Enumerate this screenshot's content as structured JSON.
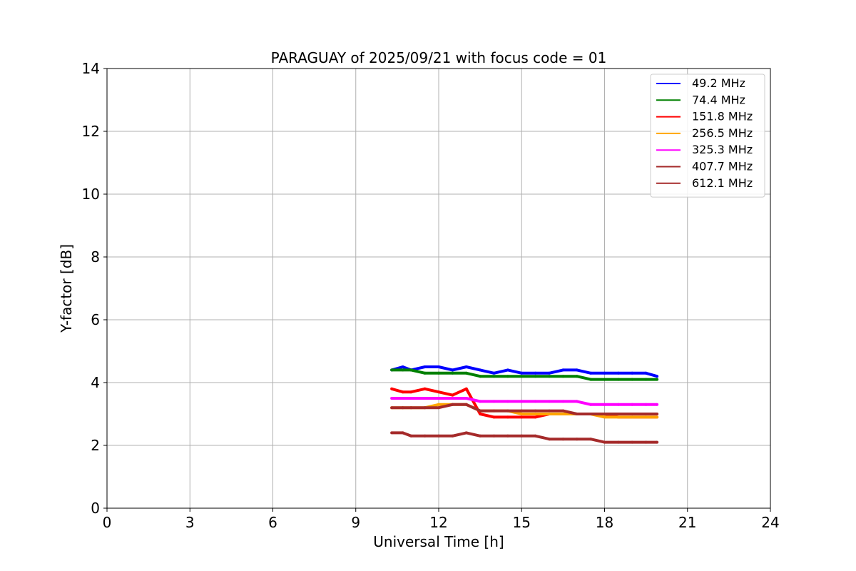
{
  "chart_data": {
    "type": "line",
    "title": "PARAGUAY of 2025/09/21 with focus code = 01",
    "xlabel": "Universal Time [h]",
    "ylabel": "Y-factor [dB]",
    "xlim": [
      0,
      24
    ],
    "ylim": [
      0,
      14
    ],
    "xticks": [
      0,
      3,
      6,
      9,
      12,
      15,
      18,
      21,
      24
    ],
    "yticks": [
      0,
      2,
      4,
      6,
      8,
      10,
      12,
      14
    ],
    "grid": true,
    "legend_position": "top-right",
    "series": [
      {
        "name": " 49.2 MHz",
        "color": "#0000ff",
        "x": [
          10.3,
          10.7,
          11.0,
          11.5,
          12.0,
          12.5,
          13.0,
          13.5,
          14.0,
          14.5,
          15.0,
          15.5,
          16.0,
          16.5,
          17.0,
          17.5,
          18.0,
          18.5,
          19.0,
          19.5,
          19.9
        ],
        "y": [
          4.4,
          4.5,
          4.4,
          4.5,
          4.5,
          4.4,
          4.5,
          4.4,
          4.3,
          4.4,
          4.3,
          4.3,
          4.3,
          4.4,
          4.4,
          4.3,
          4.3,
          4.3,
          4.3,
          4.3,
          4.2
        ]
      },
      {
        "name": " 74.4 MHz",
        "color": "#008000",
        "x": [
          10.3,
          10.7,
          11.0,
          11.5,
          12.0,
          12.5,
          13.0,
          13.5,
          14.0,
          14.5,
          15.0,
          15.5,
          16.0,
          16.5,
          17.0,
          17.5,
          18.0,
          18.5,
          19.0,
          19.5,
          19.9
        ],
        "y": [
          4.4,
          4.4,
          4.4,
          4.3,
          4.3,
          4.3,
          4.3,
          4.2,
          4.2,
          4.2,
          4.2,
          4.2,
          4.2,
          4.2,
          4.2,
          4.1,
          4.1,
          4.1,
          4.1,
          4.1,
          4.1
        ]
      },
      {
        "name": "151.8 MHz",
        "color": "#ff0000",
        "x": [
          10.3,
          10.7,
          11.0,
          11.5,
          12.0,
          12.5,
          13.0,
          13.5,
          14.0,
          14.5,
          15.0,
          15.5,
          16.0,
          16.5,
          17.0,
          17.5,
          18.0,
          18.5,
          19.0,
          19.5,
          19.9
        ],
        "y": [
          3.8,
          3.7,
          3.7,
          3.8,
          3.7,
          3.6,
          3.8,
          3.0,
          2.9,
          2.9,
          2.9,
          2.9,
          3.0,
          3.0,
          3.0,
          3.0,
          3.0,
          2.9,
          2.9,
          2.9,
          2.9
        ]
      },
      {
        "name": "256.5 MHz",
        "color": "#ffa500",
        "x": [
          10.3,
          10.7,
          11.0,
          11.5,
          12.0,
          12.5,
          13.0,
          13.5,
          14.0,
          14.5,
          15.0,
          15.5,
          16.0,
          16.5,
          17.0,
          17.5,
          18.0,
          18.5,
          19.0,
          19.5,
          19.9
        ],
        "y": [
          3.2,
          3.2,
          3.2,
          3.2,
          3.3,
          3.3,
          3.3,
          3.1,
          3.1,
          3.1,
          3.0,
          3.0,
          3.0,
          3.0,
          3.0,
          3.0,
          2.9,
          2.9,
          2.9,
          2.9,
          2.9
        ]
      },
      {
        "name": "325.3 MHz",
        "color": "#ff00ff",
        "x": [
          10.3,
          10.7,
          11.0,
          11.5,
          12.0,
          12.5,
          13.0,
          13.5,
          14.0,
          14.5,
          15.0,
          15.5,
          16.0,
          16.5,
          17.0,
          17.5,
          18.0,
          18.5,
          19.0,
          19.5,
          19.9
        ],
        "y": [
          3.5,
          3.5,
          3.5,
          3.5,
          3.5,
          3.5,
          3.5,
          3.4,
          3.4,
          3.4,
          3.4,
          3.4,
          3.4,
          3.4,
          3.4,
          3.3,
          3.3,
          3.3,
          3.3,
          3.3,
          3.3
        ]
      },
      {
        "name": "407.7 MHz",
        "color": "#a52a2a",
        "x": [
          10.3,
          10.7,
          11.0,
          11.5,
          12.0,
          12.5,
          13.0,
          13.5,
          14.0,
          14.5,
          15.0,
          15.5,
          16.0,
          16.5,
          17.0,
          17.5,
          18.0,
          18.5,
          19.0,
          19.5,
          19.9
        ],
        "y": [
          3.2,
          3.2,
          3.2,
          3.2,
          3.2,
          3.3,
          3.3,
          3.1,
          3.1,
          3.1,
          3.1,
          3.1,
          3.1,
          3.1,
          3.0,
          3.0,
          3.0,
          3.0,
          3.0,
          3.0,
          3.0
        ]
      },
      {
        "name": "612.1 MHz",
        "color": "#a52a2a",
        "x": [
          10.3,
          10.7,
          11.0,
          11.5,
          12.0,
          12.5,
          13.0,
          13.5,
          14.0,
          14.5,
          15.0,
          15.5,
          16.0,
          16.5,
          17.0,
          17.5,
          18.0,
          18.5,
          19.0,
          19.5,
          19.9
        ],
        "y": [
          2.4,
          2.4,
          2.3,
          2.3,
          2.3,
          2.3,
          2.4,
          2.3,
          2.3,
          2.3,
          2.3,
          2.3,
          2.2,
          2.2,
          2.2,
          2.2,
          2.1,
          2.1,
          2.1,
          2.1,
          2.1
        ]
      }
    ]
  }
}
